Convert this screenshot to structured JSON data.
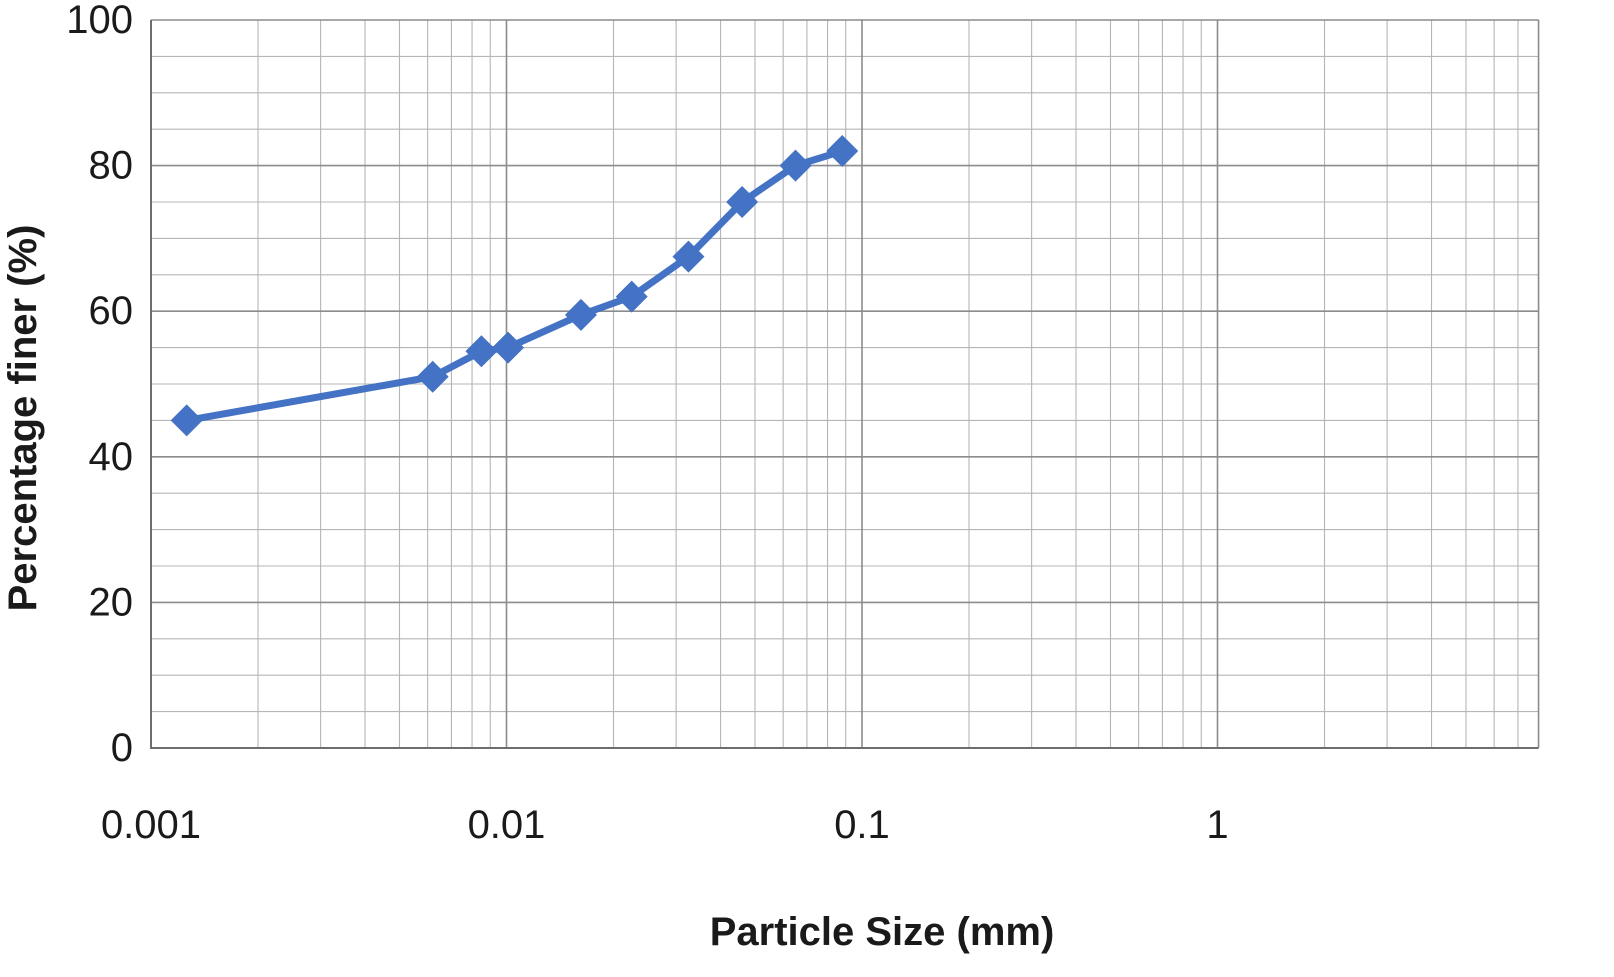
{
  "chart_data": {
    "type": "scatter",
    "title": "",
    "xlabel": "Particle Size (mm)",
    "ylabel": "Percentage finer (%)",
    "x_scale": "log",
    "xlim": [
      0.001,
      8
    ],
    "ylim": [
      0,
      100
    ],
    "x_ticks": [
      0.001,
      0.01,
      0.1,
      1
    ],
    "x_tick_labels": [
      "0.001",
      "0.01",
      "0.1",
      "1"
    ],
    "y_ticks": [
      0,
      20,
      40,
      60,
      80,
      100
    ],
    "y_tick_labels": [
      "0",
      "20",
      "40",
      "60",
      "80",
      "100"
    ],
    "y_minor_step": 5,
    "grid": true,
    "legend": "none",
    "series": [
      {
        "color": "#4472C4",
        "marker": "diamond",
        "line": true,
        "x": [
          0.00126,
          0.0062,
          0.0085,
          0.0101,
          0.0162,
          0.0225,
          0.0325,
          0.046,
          0.065,
          0.088
        ],
        "y": [
          45,
          51,
          54.5,
          55,
          59.5,
          62,
          67.5,
          75,
          80,
          82
        ]
      }
    ]
  }
}
